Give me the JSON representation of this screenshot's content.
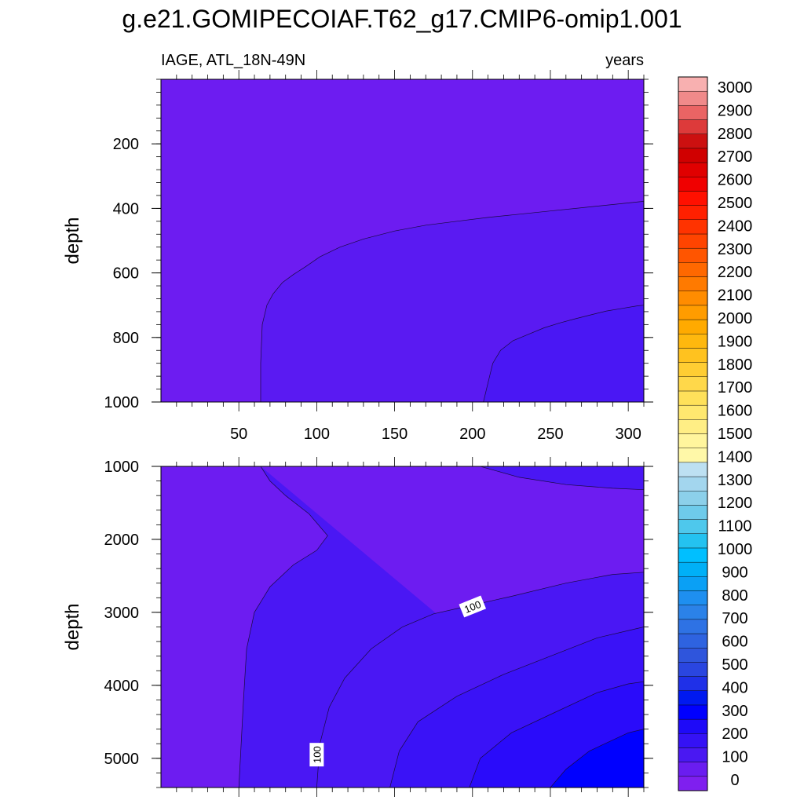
{
  "title": "g.e21.GOMIPECOIAF.T62_g17.CMIP6-omip1.001",
  "chart_data": [
    {
      "type": "contour",
      "panel": "upper",
      "left_label": "IAGE, ATL_18N-49N",
      "right_label": "years",
      "ylabel": "depth",
      "xlabel": "",
      "xlim": [
        0,
        310
      ],
      "ylim": [
        0,
        1000
      ],
      "y_inverted": true,
      "xticks": [
        50,
        100,
        150,
        200,
        250,
        300
      ],
      "xtick_labels": [
        "50",
        "100",
        "150",
        "200",
        "250",
        "300"
      ],
      "yticks": [
        200,
        400,
        600,
        800,
        1000
      ],
      "ytick_labels": [
        "200",
        "400",
        "600",
        "800",
        "1000"
      ],
      "regions": [
        {
          "level_range": "0-50"
        },
        {
          "level_range": "50-100"
        },
        {
          "level_range": "100-150"
        }
      ],
      "contours": [
        {
          "level": 50,
          "points": [
            [
              64,
              1000
            ],
            [
              64,
              880
            ],
            [
              65,
              760
            ],
            [
              68,
              700
            ],
            [
              72,
              665
            ],
            [
              78,
              630
            ],
            [
              85,
              605
            ],
            [
              93,
              580
            ],
            [
              102,
              550
            ],
            [
              115,
              520
            ],
            [
              130,
              495
            ],
            [
              150,
              470
            ],
            [
              170,
              452
            ],
            [
              190,
              440
            ],
            [
              210,
              428
            ],
            [
              230,
              418
            ],
            [
              250,
              408
            ],
            [
              270,
              398
            ],
            [
              290,
              388
            ],
            [
              310,
              378
            ]
          ]
        },
        {
          "level": 100,
          "points": [
            [
              207,
              1000
            ],
            [
              209,
              960
            ],
            [
              211,
              920
            ],
            [
              213,
              880
            ],
            [
              218,
              840
            ],
            [
              226,
              810
            ],
            [
              236,
              790
            ],
            [
              246,
              770
            ],
            [
              256,
              755
            ],
            [
              266,
              742
            ],
            [
              276,
              730
            ],
            [
              286,
              718
            ],
            [
              296,
              710
            ],
            [
              306,
              702
            ],
            [
              310,
              700
            ]
          ]
        }
      ]
    },
    {
      "type": "contour",
      "panel": "lower",
      "ylabel": "depth",
      "xlabel": "",
      "xlim": [
        0,
        310
      ],
      "ylim": [
        1000,
        5400
      ],
      "y_inverted": true,
      "yticks": [
        1000,
        2000,
        3000,
        4000,
        5000
      ],
      "ytick_labels": [
        "1000",
        "2000",
        "3000",
        "4000",
        "5000"
      ],
      "regions": [
        {
          "level_range": "0-50"
        },
        {
          "level_range": "50-100"
        },
        {
          "level_range": "100-150"
        },
        {
          "level_range": "150-200"
        },
        {
          "level_range": "200-250"
        },
        {
          "level_range": "250-300"
        }
      ],
      "contours": [
        {
          "level": 50,
          "points": [
            [
              64,
              1000
            ],
            [
              70,
              1200
            ],
            [
              80,
              1400
            ],
            [
              95,
              1650
            ],
            [
              107,
              1950
            ],
            [
              100,
              2150
            ],
            [
              85,
              2350
            ],
            [
              70,
              2650
            ],
            [
              60,
              3000
            ],
            [
              55,
              3500
            ],
            [
              53,
              4200
            ],
            [
              50,
              5400
            ]
          ]
        },
        {
          "level": 100,
          "points": [
            [
              100,
              5400
            ],
            [
              102,
              4800
            ],
            [
              108,
              4300
            ],
            [
              118,
              3900
            ],
            [
              135,
              3500
            ],
            [
              155,
              3200
            ],
            [
              175,
              3020
            ],
            [
              200,
              2900
            ],
            [
              225,
              2780
            ],
            [
              260,
              2600
            ],
            [
              290,
              2480
            ],
            [
              310,
              2450
            ]
          ]
        },
        {
          "level": 150,
          "points": [
            [
              147,
              5400
            ],
            [
              153,
              4900
            ],
            [
              165,
              4500
            ],
            [
              190,
              4150
            ],
            [
              220,
              3850
            ],
            [
              250,
              3600
            ],
            [
              280,
              3350
            ],
            [
              300,
              3250
            ],
            [
              310,
              3200
            ]
          ]
        },
        {
          "level": 200,
          "points": [
            [
              198,
              5400
            ],
            [
              205,
              5000
            ],
            [
              225,
              4650
            ],
            [
              250,
              4400
            ],
            [
              280,
              4100
            ],
            [
              300,
              3980
            ],
            [
              310,
              3950
            ]
          ]
        },
        {
          "level": 250,
          "points": [
            [
              250,
              5400
            ],
            [
              260,
              5150
            ],
            [
              275,
              4900
            ],
            [
              300,
              4650
            ],
            [
              310,
              4600
            ]
          ]
        },
        {
          "level": 50,
          "points": [
            [
              205,
              1000
            ],
            [
              230,
              1150
            ],
            [
              260,
              1250
            ],
            [
              290,
              1300
            ],
            [
              310,
              1320
            ]
          ]
        }
      ],
      "annotations": [
        {
          "text": "100",
          "x": 200,
          "y": 2920
        },
        {
          "text": "100",
          "x": 100,
          "y": 4950
        }
      ]
    }
  ],
  "colorbar": {
    "labels": [
      "0",
      "100",
      "200",
      "300",
      "400",
      "500",
      "600",
      "700",
      "800",
      "900",
      "1000",
      "1100",
      "1200",
      "1300",
      "1400",
      "1500",
      "1600",
      "1700",
      "1800",
      "1900",
      "2000",
      "2100",
      "2200",
      "2300",
      "2400",
      "2500",
      "2600",
      "2700",
      "2800",
      "2900",
      "3000"
    ],
    "colors": [
      "#7f1fef",
      "#6a1df0",
      "#4a18f2",
      "#3512f5",
      "#1e0af8",
      "#0000ff",
      "#0019f0",
      "#1f30e8",
      "#2a46e0",
      "#2f55dc",
      "#2e63e0",
      "#2e72e4",
      "#2b82e8",
      "#1e8ff0",
      "#0aa0f5",
      "#00b0f7",
      "#00bfff",
      "#24c2f0",
      "#4ec8ec",
      "#6ecbeb",
      "#8cd0ea",
      "#a3d6ee",
      "#bde0f2",
      "#fff8a8",
      "#fff59d",
      "#ffee85",
      "#ffe86f",
      "#ffe15a",
      "#ffd84a",
      "#ffcd33",
      "#ffc21f",
      "#ffb80e",
      "#ffaa00",
      "#ff9c00",
      "#ff8c00",
      "#ff7a00",
      "#ff6800",
      "#ff5500",
      "#ff4400",
      "#ff3300",
      "#ff2000",
      "#ff1000",
      "#f00000",
      "#e00000",
      "#d00000",
      "#cc1010",
      "#dd3a3a",
      "#ea6464",
      "#f08a8a",
      "#f8b0b0"
    ]
  }
}
